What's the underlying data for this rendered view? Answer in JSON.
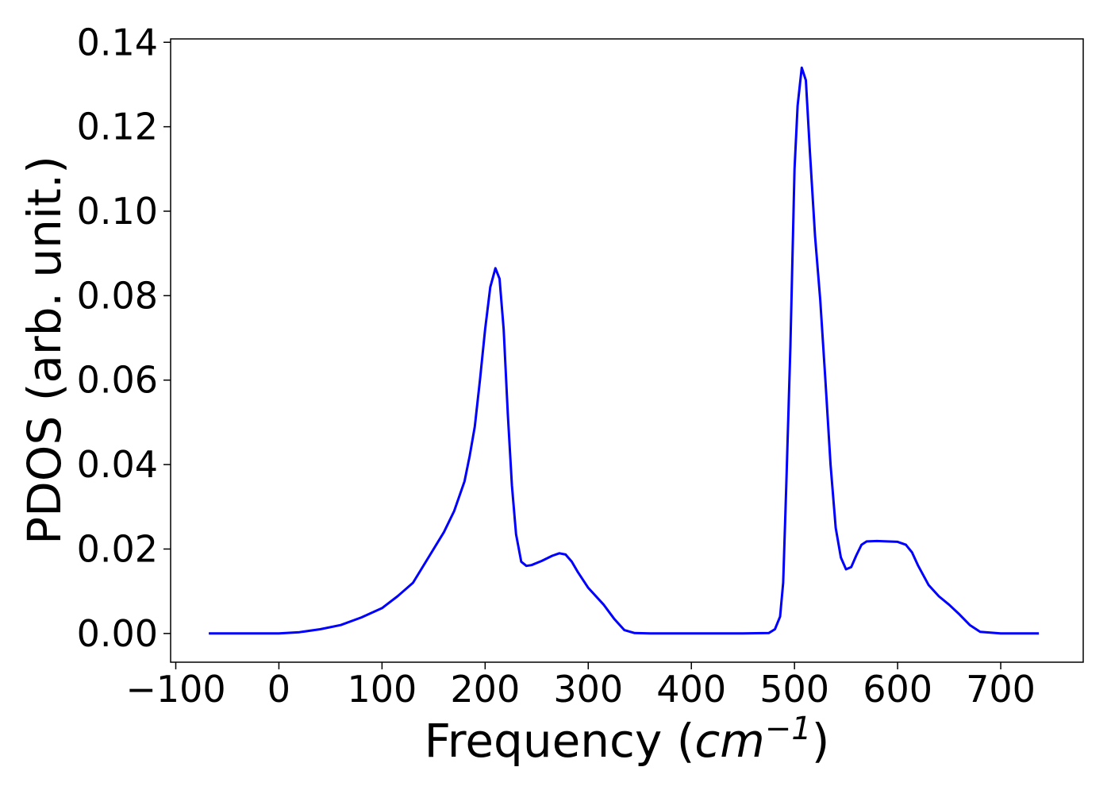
{
  "chart_data": {
    "type": "line",
    "title": "",
    "xlabel_prefix": "Frequency (",
    "xlabel_unit": "cm",
    "xlabel_exponent": "−1",
    "xlabel_suffix": ")",
    "ylabel": "PDOS (arb. unit.)",
    "xlim": [
      -105,
      780
    ],
    "ylim": [
      -0.0068,
      0.1408
    ],
    "xticks": [
      -100,
      0,
      100,
      200,
      300,
      400,
      500,
      600,
      700
    ],
    "xtick_labels": [
      "−100",
      "0",
      "100",
      "200",
      "300",
      "400",
      "500",
      "600",
      "700"
    ],
    "yticks": [
      0.0,
      0.02,
      0.04,
      0.06,
      0.08,
      0.1,
      0.12,
      0.14
    ],
    "ytick_labels": [
      "0.00",
      "0.02",
      "0.04",
      "0.06",
      "0.08",
      "0.10",
      "0.12",
      "0.14"
    ],
    "grid": false,
    "series": [
      {
        "color": "#0000ff",
        "x": [
          -68,
          0,
          20,
          40,
          60,
          80,
          100,
          115,
          130,
          145,
          160,
          170,
          180,
          185,
          190,
          195,
          200,
          205,
          210,
          214,
          218,
          222,
          226,
          230,
          235,
          240,
          245,
          255,
          265,
          272,
          278,
          284,
          290,
          300,
          315,
          325,
          335,
          345,
          360,
          400,
          450,
          475,
          481,
          486,
          489,
          492,
          496,
          500,
          503,
          507,
          511,
          515,
          520,
          525,
          530,
          535,
          540,
          545,
          550,
          555,
          560,
          565,
          570,
          580,
          590,
          600,
          608,
          614,
          620,
          630,
          640,
          650,
          660,
          670,
          680,
          700,
          737
        ],
        "y": [
          0.0,
          0.0,
          0.0003,
          0.001,
          0.002,
          0.0038,
          0.006,
          0.0088,
          0.012,
          0.018,
          0.024,
          0.029,
          0.036,
          0.042,
          0.049,
          0.06,
          0.072,
          0.082,
          0.0865,
          0.084,
          0.072,
          0.052,
          0.035,
          0.0235,
          0.017,
          0.016,
          0.0162,
          0.0172,
          0.0184,
          0.019,
          0.0187,
          0.017,
          0.0145,
          0.0108,
          0.0068,
          0.0035,
          0.0008,
          0.0001,
          0.0,
          0.0,
          0.0,
          0.0001,
          0.001,
          0.004,
          0.012,
          0.035,
          0.068,
          0.11,
          0.125,
          0.134,
          0.131,
          0.114,
          0.094,
          0.079,
          0.06,
          0.04,
          0.025,
          0.018,
          0.0152,
          0.0157,
          0.0185,
          0.021,
          0.0218,
          0.0219,
          0.0218,
          0.0217,
          0.021,
          0.0192,
          0.016,
          0.0115,
          0.0088,
          0.0068,
          0.0045,
          0.002,
          0.0004,
          0.0,
          0.0
        ]
      }
    ]
  }
}
